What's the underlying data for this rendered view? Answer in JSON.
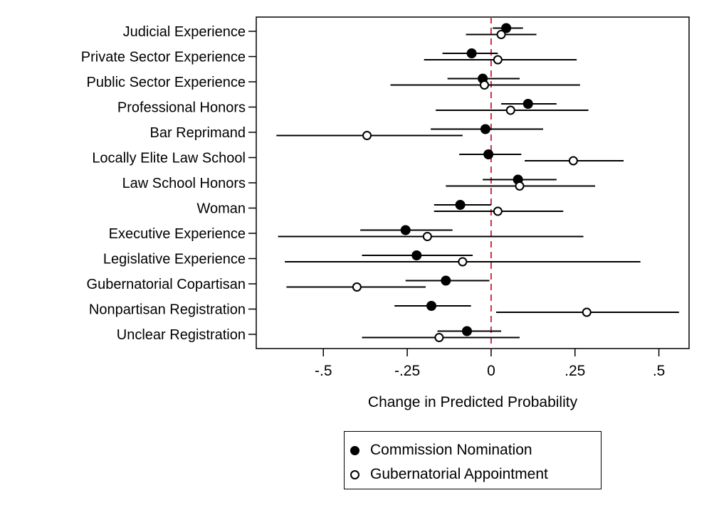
{
  "chart_data": {
    "type": "scatter",
    "title": "",
    "xlabel": "Change in Predicted Probability",
    "ylabel": "",
    "xlim": [
      -0.7,
      0.59
    ],
    "x_ticks": [
      -0.5,
      -0.25,
      0,
      0.25,
      0.5
    ],
    "x_tick_labels": [
      "-.5",
      "-.25",
      "0",
      ".25",
      ".5"
    ],
    "reference_line": 0,
    "reference_line_color": "#c8304f",
    "grid": false,
    "legend_position": "bottom",
    "categories": [
      "Judicial Experience",
      "Private Sector Experience",
      "Public Sector Experience",
      "Professional Honors",
      "Bar Reprimand",
      "Locally Elite Law School",
      "Law School Honors",
      "Woman",
      "Executive Experience",
      "Legislative Experience",
      "Gubernatorial Copartisan",
      "Nonpartisan Registration",
      "Unclear Registration"
    ],
    "series": [
      {
        "name": "Commission Nomination",
        "marker": "filled",
        "values": [
          0.045,
          -0.058,
          -0.025,
          0.11,
          -0.017,
          -0.008,
          0.08,
          -0.092,
          -0.255,
          -0.222,
          -0.135,
          -0.178,
          -0.072
        ],
        "lower": [
          0.005,
          -0.145,
          -0.13,
          0.03,
          -0.18,
          -0.095,
          -0.025,
          -0.17,
          -0.39,
          -0.385,
          -0.255,
          -0.288,
          -0.16
        ],
        "upper": [
          0.095,
          0.02,
          0.085,
          0.195,
          0.155,
          0.09,
          0.195,
          0.0,
          -0.115,
          -0.055,
          -0.005,
          -0.06,
          0.03
        ]
      },
      {
        "name": "Gubernatorial Appointment",
        "marker": "hollow",
        "values": [
          0.03,
          0.02,
          -0.02,
          0.058,
          -0.37,
          0.245,
          0.085,
          0.02,
          -0.19,
          -0.085,
          -0.4,
          0.285,
          -0.155
        ],
        "lower": [
          -0.075,
          -0.2,
          -0.3,
          -0.165,
          -0.64,
          0.1,
          -0.135,
          -0.17,
          -0.635,
          -0.615,
          -0.61,
          0.015,
          -0.385
        ],
        "upper": [
          0.135,
          0.255,
          0.265,
          0.29,
          -0.085,
          0.395,
          0.31,
          0.215,
          0.275,
          0.445,
          -0.195,
          0.56,
          0.085
        ]
      }
    ]
  },
  "legend": {
    "commission_label": "Commission Nomination",
    "gubernatorial_label": "Gubernatorial Appointment"
  }
}
